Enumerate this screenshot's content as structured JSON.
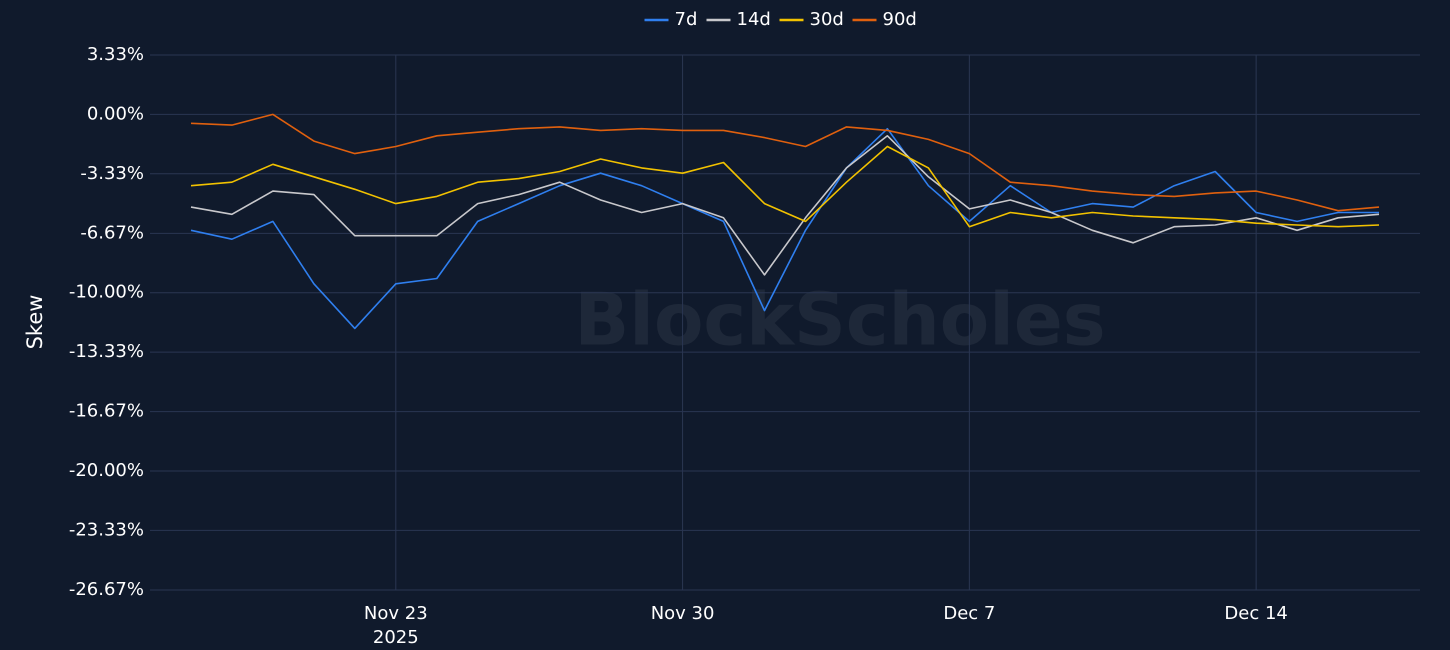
{
  "chart_data": {
    "type": "line",
    "y_label": "Skew",
    "watermark": "BlockScholes",
    "grid": true,
    "legend_position": "top",
    "x": [
      "2025-11-18",
      "2025-11-19",
      "2025-11-20",
      "2025-11-21",
      "2025-11-22",
      "2025-11-23",
      "2025-11-24",
      "2025-11-25",
      "2025-11-26",
      "2025-11-27",
      "2025-11-28",
      "2025-11-29",
      "2025-11-30",
      "2025-12-01",
      "2025-12-02",
      "2025-12-03",
      "2025-12-04",
      "2025-12-05",
      "2025-12-06",
      "2025-12-07",
      "2025-12-08",
      "2025-12-09",
      "2025-12-10",
      "2025-12-11",
      "2025-12-12",
      "2025-12-13",
      "2025-12-14",
      "2025-12-15",
      "2025-12-16",
      "2025-12-17"
    ],
    "xlim": [
      "2025-11-17",
      "2025-12-18"
    ],
    "xticks": [
      {
        "value": "2025-11-23",
        "label": "Nov 23"
      },
      {
        "value": "2025-11-30",
        "label": "Nov 30"
      },
      {
        "value": "2025-12-07",
        "label": "Dec 7"
      },
      {
        "value": "2025-12-14",
        "label": "Dec 14"
      }
    ],
    "x_year_label": "2025",
    "ylim": [
      -26.67,
      3.33
    ],
    "yticks": [
      {
        "value": 3.33,
        "label": "3.33%"
      },
      {
        "value": 0,
        "label": "0.00%"
      },
      {
        "value": -3.33,
        "label": "-3.33%"
      },
      {
        "value": -6.67,
        "label": "-6.67%"
      },
      {
        "value": -10,
        "label": "-10.00%"
      },
      {
        "value": -13.33,
        "label": "-13.33%"
      },
      {
        "value": -16.67,
        "label": "-16.67%"
      },
      {
        "value": -20,
        "label": "-20.00%"
      },
      {
        "value": -23.33,
        "label": "-23.33%"
      },
      {
        "value": -26.67,
        "label": "-26.67%"
      }
    ],
    "series": [
      {
        "name": "7d",
        "color": "#2f7fef",
        "values": [
          -6.5,
          -7.0,
          -6.0,
          -9.5,
          -12.0,
          -9.5,
          -9.2,
          -6.0,
          -5.0,
          -4.0,
          -3.3,
          -4.0,
          -5.0,
          -6.0,
          -11.0,
          -6.5,
          -3.0,
          -0.8,
          -4.0,
          -6.0,
          -4.0,
          -5.5,
          -5.0,
          -5.2,
          -4.0,
          -3.2,
          -5.5,
          -6.0,
          -5.5,
          -5.5
        ]
      },
      {
        "name": "14d",
        "color": "#c8c8cc",
        "values": [
          -5.2,
          -5.6,
          -4.3,
          -4.5,
          -6.8,
          -6.8,
          -6.8,
          -5.0,
          -4.5,
          -3.8,
          -4.8,
          -5.5,
          -5.0,
          -5.8,
          -9.0,
          -5.8,
          -3.0,
          -1.2,
          -3.5,
          -5.3,
          -4.8,
          -5.5,
          -6.5,
          -7.2,
          -6.3,
          -6.2,
          -5.8,
          -6.5,
          -5.8,
          -5.6
        ]
      },
      {
        "name": "30d",
        "color": "#f2c200",
        "values": [
          -4.0,
          -3.8,
          -2.8,
          -3.5,
          -4.2,
          -5.0,
          -4.6,
          -3.8,
          -3.6,
          -3.2,
          -2.5,
          -3.0,
          -3.3,
          -2.7,
          -5.0,
          -6.0,
          -3.8,
          -1.8,
          -3.0,
          -6.3,
          -5.5,
          -5.8,
          -5.5,
          -5.7,
          -5.8,
          -5.9,
          -6.1,
          -6.2,
          -6.3,
          -6.2
        ]
      },
      {
        "name": "90d",
        "color": "#e0600e",
        "values": [
          -0.5,
          -0.6,
          0.0,
          -1.5,
          -2.2,
          -1.8,
          -1.2,
          -1.0,
          -0.8,
          -0.7,
          -0.9,
          -0.8,
          -0.9,
          -0.9,
          -1.3,
          -1.8,
          -0.7,
          -0.9,
          -1.4,
          -2.2,
          -3.8,
          -4.0,
          -4.3,
          -4.5,
          -4.6,
          -4.4,
          -4.3,
          -4.8,
          -5.4,
          -5.2
        ]
      }
    ]
  }
}
